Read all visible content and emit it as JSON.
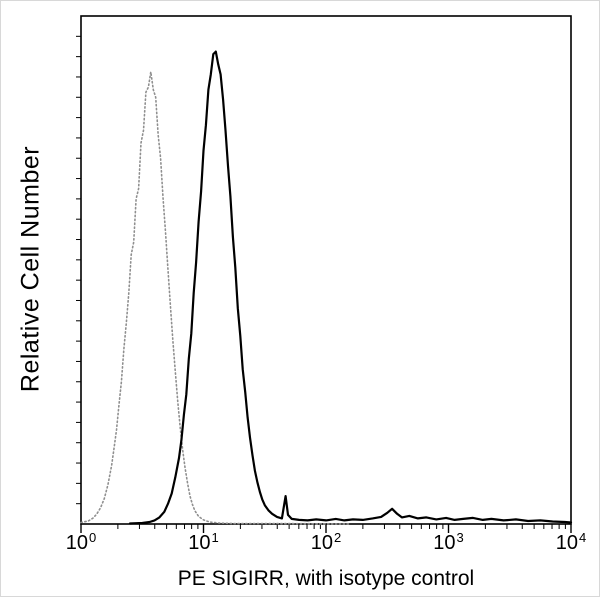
{
  "chart_data": {
    "type": "line",
    "title": "",
    "xlabel": "PE SIGIRR, with isotype control",
    "ylabel": "Relative Cell Number",
    "x_scale": "log10",
    "xlim_log10": [
      0,
      4
    ],
    "ylim": [
      0,
      1
    ],
    "grid": false,
    "legend": "none",
    "x_ticks": [
      {
        "base": "10",
        "exp": "0",
        "log10": 0
      },
      {
        "base": "10",
        "exp": "1",
        "log10": 1
      },
      {
        "base": "10",
        "exp": "2",
        "log10": 2
      },
      {
        "base": "10",
        "exp": "3",
        "log10": 3
      },
      {
        "base": "10",
        "exp": "4",
        "log10": 4
      }
    ],
    "series": [
      {
        "name": "isotype control",
        "style": "dotted",
        "color": "#8f8f8f",
        "stroke_width": 1.6,
        "points": [
          [
            0.0,
            0.003
          ],
          [
            0.06,
            0.006
          ],
          [
            0.1,
            0.012
          ],
          [
            0.13,
            0.02
          ],
          [
            0.16,
            0.032
          ],
          [
            0.19,
            0.05
          ],
          [
            0.22,
            0.078
          ],
          [
            0.25,
            0.115
          ],
          [
            0.27,
            0.15
          ],
          [
            0.29,
            0.185
          ],
          [
            0.31,
            0.235
          ],
          [
            0.33,
            0.28
          ],
          [
            0.35,
            0.345
          ],
          [
            0.37,
            0.395
          ],
          [
            0.39,
            0.455
          ],
          [
            0.41,
            0.53
          ],
          [
            0.43,
            0.555
          ],
          [
            0.45,
            0.64
          ],
          [
            0.47,
            0.66
          ],
          [
            0.49,
            0.75
          ],
          [
            0.51,
            0.775
          ],
          [
            0.53,
            0.85
          ],
          [
            0.55,
            0.86
          ],
          [
            0.57,
            0.89
          ],
          [
            0.59,
            0.855
          ],
          [
            0.61,
            0.84
          ],
          [
            0.63,
            0.765
          ],
          [
            0.65,
            0.72
          ],
          [
            0.67,
            0.64
          ],
          [
            0.69,
            0.575
          ],
          [
            0.71,
            0.5
          ],
          [
            0.73,
            0.43
          ],
          [
            0.75,
            0.36
          ],
          [
            0.77,
            0.3
          ],
          [
            0.79,
            0.24
          ],
          [
            0.81,
            0.19
          ],
          [
            0.83,
            0.145
          ],
          [
            0.85,
            0.11
          ],
          [
            0.87,
            0.08
          ],
          [
            0.89,
            0.055
          ],
          [
            0.91,
            0.038
          ],
          [
            0.93,
            0.026
          ],
          [
            0.96,
            0.015
          ],
          [
            1.0,
            0.008
          ],
          [
            1.05,
            0.004
          ],
          [
            1.12,
            0.002
          ],
          [
            1.25,
            0.001
          ],
          [
            1.6,
            0.001
          ],
          [
            2.2,
            0.0
          ]
        ]
      },
      {
        "name": "PE SIGIRR",
        "style": "solid",
        "color": "#000000",
        "stroke_width": 2.2,
        "points": [
          [
            0.4,
            0.001
          ],
          [
            0.5,
            0.002
          ],
          [
            0.56,
            0.004
          ],
          [
            0.6,
            0.007
          ],
          [
            0.64,
            0.013
          ],
          [
            0.68,
            0.024
          ],
          [
            0.71,
            0.04
          ],
          [
            0.74,
            0.06
          ],
          [
            0.77,
            0.092
          ],
          [
            0.8,
            0.13
          ],
          [
            0.82,
            0.165
          ],
          [
            0.84,
            0.215
          ],
          [
            0.86,
            0.255
          ],
          [
            0.88,
            0.325
          ],
          [
            0.9,
            0.375
          ],
          [
            0.92,
            0.455
          ],
          [
            0.94,
            0.515
          ],
          [
            0.96,
            0.595
          ],
          [
            0.98,
            0.655
          ],
          [
            1.0,
            0.735
          ],
          [
            1.02,
            0.785
          ],
          [
            1.04,
            0.855
          ],
          [
            1.06,
            0.885
          ],
          [
            1.08,
            0.925
          ],
          [
            1.1,
            0.93
          ],
          [
            1.12,
            0.905
          ],
          [
            1.14,
            0.885
          ],
          [
            1.16,
            0.835
          ],
          [
            1.18,
            0.775
          ],
          [
            1.2,
            0.705
          ],
          [
            1.22,
            0.645
          ],
          [
            1.24,
            0.565
          ],
          [
            1.26,
            0.505
          ],
          [
            1.28,
            0.425
          ],
          [
            1.3,
            0.37
          ],
          [
            1.32,
            0.305
          ],
          [
            1.34,
            0.26
          ],
          [
            1.36,
            0.21
          ],
          [
            1.38,
            0.17
          ],
          [
            1.4,
            0.135
          ],
          [
            1.42,
            0.105
          ],
          [
            1.44,
            0.082
          ],
          [
            1.46,
            0.063
          ],
          [
            1.48,
            0.048
          ],
          [
            1.5,
            0.037
          ],
          [
            1.53,
            0.027
          ],
          [
            1.56,
            0.02
          ],
          [
            1.6,
            0.014
          ],
          [
            1.64,
            0.011
          ],
          [
            1.67,
            0.055
          ],
          [
            1.69,
            0.018
          ],
          [
            1.72,
            0.01
          ],
          [
            1.78,
            0.008
          ],
          [
            1.85,
            0.007
          ],
          [
            1.92,
            0.009
          ],
          [
            2.0,
            0.007
          ],
          [
            2.08,
            0.01
          ],
          [
            2.15,
            0.007
          ],
          [
            2.22,
            0.009
          ],
          [
            2.3,
            0.008
          ],
          [
            2.38,
            0.011
          ],
          [
            2.45,
            0.014
          ],
          [
            2.5,
            0.022
          ],
          [
            2.54,
            0.03
          ],
          [
            2.58,
            0.02
          ],
          [
            2.62,
            0.013
          ],
          [
            2.68,
            0.016
          ],
          [
            2.75,
            0.011
          ],
          [
            2.82,
            0.013
          ],
          [
            2.9,
            0.009
          ],
          [
            2.98,
            0.012
          ],
          [
            3.05,
            0.008
          ],
          [
            3.12,
            0.01
          ],
          [
            3.2,
            0.012
          ],
          [
            3.28,
            0.008
          ],
          [
            3.35,
            0.01
          ],
          [
            3.45,
            0.007
          ],
          [
            3.55,
            0.009
          ],
          [
            3.65,
            0.006
          ],
          [
            3.75,
            0.007
          ],
          [
            3.85,
            0.005
          ],
          [
            3.95,
            0.004
          ],
          [
            4.0,
            0.003
          ]
        ]
      }
    ]
  },
  "colors": {
    "frame": "#000000",
    "background": "#ffffff"
  }
}
